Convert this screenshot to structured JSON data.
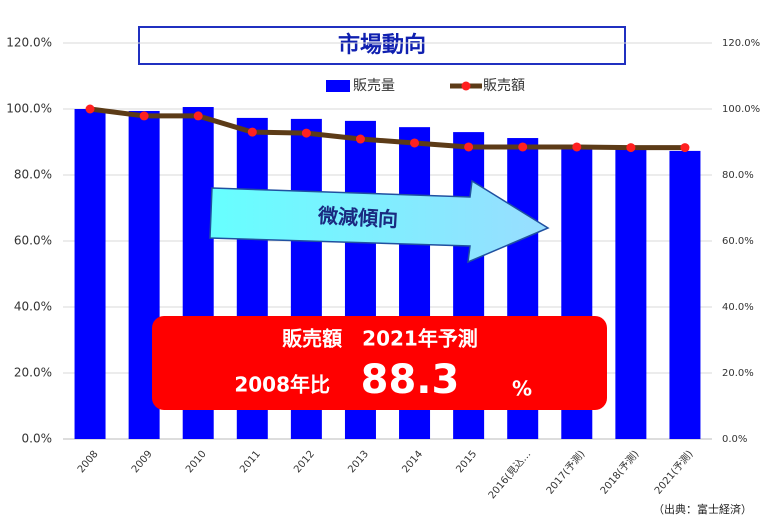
{
  "chart_data": {
    "type": "bar",
    "title": "市場動向",
    "categories": [
      "2008",
      "2009",
      "2010",
      "2011",
      "2012",
      "2013",
      "2014",
      "2015",
      "2016(見込…",
      "2017(予測)",
      "2018(予測)",
      "2021(予測)"
    ],
    "series": [
      {
        "name": "販売量",
        "type": "bar",
        "color": "#0000ff",
        "values": [
          100,
          99.4,
          100.6,
          97.3,
          97,
          96.4,
          94.5,
          93,
          91.2,
          88.8,
          87.9,
          87.3
        ]
      },
      {
        "name": "販売額",
        "type": "line",
        "axis": "y2",
        "color": "#5c3b17",
        "marker_color": "#ff2020",
        "values": [
          100,
          97.9,
          97.9,
          93,
          92.7,
          90.9,
          89.7,
          88.5,
          88.5,
          88.5,
          88.3,
          88.3
        ]
      }
    ],
    "ylim": [
      0,
      120
    ],
    "yticks": [
      {
        "value": 0,
        "label": "0.0%"
      },
      {
        "value": 20,
        "label": "20.0%"
      },
      {
        "value": 40,
        "label": "40.0%"
      },
      {
        "value": 60,
        "label": "60.0%"
      },
      {
        "value": 80,
        "label": "80.0%"
      },
      {
        "value": 100,
        "label": "100.0%"
      },
      {
        "value": 120,
        "label": "120.0%"
      }
    ],
    "y2lim": [
      0,
      120
    ],
    "y2ticks": [
      {
        "value": 0,
        "label": "0.0%"
      },
      {
        "value": 20,
        "label": "20.0%"
      },
      {
        "value": 40,
        "label": "40.0%"
      },
      {
        "value": 60,
        "label": "60.0%"
      },
      {
        "value": 80,
        "label": "80.0%"
      },
      {
        "value": 100,
        "label": "100.0%"
      },
      {
        "value": 120,
        "label": "120.0%"
      }
    ],
    "grid": true,
    "legend": "top",
    "annotations": {
      "arrow": "微減傾向",
      "box_title": "販売額　2021年予測",
      "box_prefix": "2008年比",
      "box_value": "88.3",
      "box_unit": "%",
      "source": "（出典：富士経済）"
    }
  }
}
